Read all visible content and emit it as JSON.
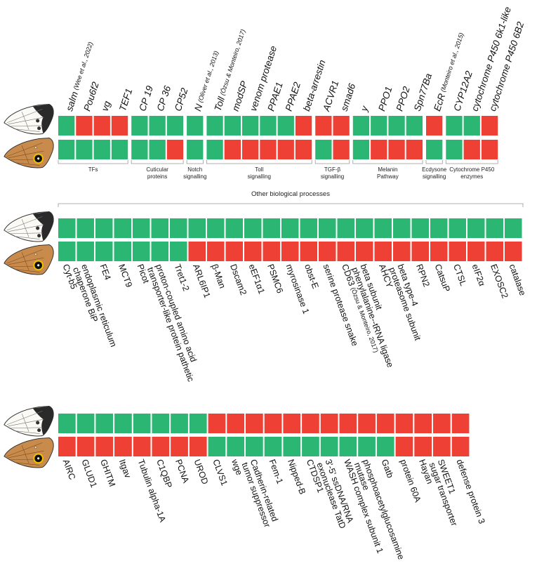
{
  "panels": [
    {
      "groups": [
        {
          "label": [
            "TFs"
          ],
          "genes": [
            {
              "label": [
                "salm"
              ],
              "ref": "(Wee et al., 2022)",
              "colors": [
                "#2bb673",
                "#2bb673"
              ]
            },
            {
              "label": [
                "Pou6f2"
              ],
              "colors": [
                "#ee4035",
                "#2bb673"
              ]
            },
            {
              "label": [
                "vg"
              ],
              "colors": [
                "#ee4035",
                "#2bb673"
              ]
            },
            {
              "label": [
                "TEF1"
              ],
              "colors": [
                "#ee4035",
                "#2bb673"
              ]
            }
          ]
        },
        {
          "label": [
            "Cuticular",
            "proteins"
          ],
          "genes": [
            {
              "label": [
                "CP 19"
              ],
              "colors": [
                "#2bb673",
                "#2bb673"
              ]
            },
            {
              "label": [
                "CP 36"
              ],
              "colors": [
                "#2bb673",
                "#2bb673"
              ]
            },
            {
              "label": [
                "CP52"
              ],
              "colors": [
                "#2bb673",
                "#ee4035"
              ]
            }
          ]
        },
        {
          "label": [
            "Notch",
            "signalling"
          ],
          "genes": [
            {
              "label": [
                "N"
              ],
              "ref": "(Oliver et al., 2013)",
              "colors": [
                "#2bb673",
                "#2bb673"
              ]
            }
          ]
        },
        {
          "label": [
            "Toll",
            "signalling"
          ],
          "genes": [
            {
              "label": [
                "Toll"
              ],
              "ref": "(Özsu & Monteiro, 2017)",
              "colors": [
                "#2bb673",
                "#2bb673"
              ]
            },
            {
              "label": [
                "modSP"
              ],
              "colors": [
                "#2bb673",
                "#ee4035"
              ]
            },
            {
              "label": [
                "venom protease"
              ],
              "colors": [
                "#2bb673",
                "#ee4035"
              ]
            },
            {
              "label": [
                "PPAE1"
              ],
              "colors": [
                "#2bb673",
                "#ee4035"
              ]
            },
            {
              "label": [
                "PPAE2"
              ],
              "colors": [
                "#2bb673",
                "#ee4035"
              ]
            },
            {
              "label": [
                "beta-arrestin"
              ],
              "colors": [
                "#ee4035",
                "#ee4035"
              ]
            }
          ]
        },
        {
          "label": [
            "TGF-β",
            "signalling"
          ],
          "genes": [
            {
              "label": [
                "ACVR1"
              ],
              "colors": [
                "#ee4035",
                "#2bb673"
              ]
            },
            {
              "label": [
                "smad6"
              ],
              "colors": [
                "#ee4035",
                "#ee4035"
              ]
            }
          ]
        },
        {
          "label": [
            "Melanin",
            "Pathway"
          ],
          "genes": [
            {
              "label": [
                "y"
              ],
              "colors": [
                "#2bb673",
                "#2bb673"
              ]
            },
            {
              "label": [
                "PPO1"
              ],
              "colors": [
                "#2bb673",
                "#ee4035"
              ]
            },
            {
              "label": [
                "PPO2"
              ],
              "colors": [
                "#2bb673",
                "#ee4035"
              ]
            },
            {
              "label": [
                "Spn77Ba"
              ],
              "colors": [
                "#2bb673",
                "#ee4035"
              ]
            }
          ]
        },
        {
          "label": [
            "Ecdysone",
            "signalling"
          ],
          "genes": [
            {
              "label": [
                "EcR"
              ],
              "ref": "(Monteiro et al., 2015)",
              "colors": [
                "#ee4035",
                "#2bb673"
              ]
            }
          ]
        },
        {
          "label": [
            "Cytochrome P450",
            "enzymes"
          ],
          "genes": [
            {
              "label": [
                "CYP12A2"
              ],
              "colors": [
                "#2bb673",
                "#2bb673"
              ]
            },
            {
              "label": [
                "cytochrome P450 6k1-like"
              ],
              "colors": [
                "#2bb673",
                "#ee4035"
              ]
            },
            {
              "label": [
                "cytochrome P450 6B2"
              ],
              "colors": [
                "#ee4035",
                "#ee4035"
              ]
            }
          ]
        }
      ]
    },
    {
      "title": "Other biological processes",
      "genes": [
        {
          "label": [
            "Cyt-b5"
          ],
          "colors": [
            "#2bb673",
            "#2bb673"
          ]
        },
        {
          "label": [
            "endoplasmic reticulum",
            "chaperone BiP"
          ],
          "colors": [
            "#2bb673",
            "#2bb673"
          ]
        },
        {
          "label": [
            "FE4"
          ],
          "colors": [
            "#2bb673",
            "#2bb673"
          ]
        },
        {
          "label": [
            "MCT9"
          ],
          "colors": [
            "#2bb673",
            "#2bb673"
          ]
        },
        {
          "label": [
            "Picot"
          ],
          "colors": [
            "#2bb673",
            "#2bb673"
          ]
        },
        {
          "label": [
            "proton-coupled amino acid",
            "transporter-like protein pathetic"
          ],
          "colors": [
            "#2bb673",
            "#2bb673"
          ]
        },
        {
          "label": [
            "Tret1-2"
          ],
          "colors": [
            "#2bb673",
            "#2bb673"
          ]
        },
        {
          "label": [
            "ARL6IP1"
          ],
          "colors": [
            "#2bb673",
            "#ee4035"
          ]
        },
        {
          "label": [
            "β-Man"
          ],
          "colors": [
            "#2bb673",
            "#ee4035"
          ]
        },
        {
          "label": [
            "Dscam2"
          ],
          "colors": [
            "#2bb673",
            "#ee4035"
          ]
        },
        {
          "label": [
            "eEF1α1"
          ],
          "colors": [
            "#2bb673",
            "#ee4035"
          ]
        },
        {
          "label": [
            "PSMC6"
          ],
          "colors": [
            "#2bb673",
            "#ee4035"
          ]
        },
        {
          "label": [
            "myrosinase 1"
          ],
          "colors": [
            "#2bb673",
            "#ee4035"
          ]
        },
        {
          "label": [
            "obst-E"
          ],
          "colors": [
            "#2bb673",
            "#ee4035"
          ]
        },
        {
          "label": [
            "serine protease snake"
          ],
          "colors": [
            "#2bb673",
            "#ee4035"
          ]
        },
        {
          "label": [
            "CD63"
          ],
          "ref": "(Özsu & Monteiro, 2017)",
          "colors": [
            "#2bb673",
            "#ee4035"
          ]
        },
        {
          "label": [
            "beta subunit",
            "phenylalanine--tRNA ligase"
          ],
          "colors": [
            "#2bb673",
            "#ee4035"
          ]
        },
        {
          "label": [
            "AHCY"
          ],
          "colors": [
            "#2bb673",
            "#ee4035"
          ]
        },
        {
          "label": [
            "beta type-4",
            "proteasome subunit"
          ],
          "colors": [
            "#2bb673",
            "#ee4035"
          ]
        },
        {
          "label": [
            "RPN2"
          ],
          "colors": [
            "#2bb673",
            "#ee4035"
          ]
        },
        {
          "label": [
            "CatsuP"
          ],
          "colors": [
            "#2bb673",
            "#ee4035"
          ]
        },
        {
          "label": [
            "CTSL"
          ],
          "colors": [
            "#2bb673",
            "#ee4035"
          ]
        },
        {
          "label": [
            "eIF2α"
          ],
          "colors": [
            "#2bb673",
            "#ee4035"
          ]
        },
        {
          "label": [
            "EXOSC2"
          ],
          "colors": [
            "#2bb673",
            "#ee4035"
          ]
        },
        {
          "label": [
            "catalase"
          ],
          "colors": [
            "#2bb673",
            "#ee4035"
          ]
        }
      ]
    },
    {
      "genes": [
        {
          "label": [
            "AIRC"
          ],
          "colors": [
            "#2bb673",
            "#ee4035"
          ]
        },
        {
          "label": [
            "GLUD1"
          ],
          "colors": [
            "#2bb673",
            "#ee4035"
          ]
        },
        {
          "label": [
            "GHITM"
          ],
          "colors": [
            "#2bb673",
            "#ee4035"
          ]
        },
        {
          "label": [
            "Itgav"
          ],
          "colors": [
            "#2bb673",
            "#ee4035"
          ]
        },
        {
          "label": [
            "Tubulin alpha-1A"
          ],
          "colors": [
            "#2bb673",
            "#ee4035"
          ]
        },
        {
          "label": [
            "C1QBP"
          ],
          "colors": [
            "#2bb673",
            "#ee4035"
          ]
        },
        {
          "label": [
            "PCNA"
          ],
          "colors": [
            "#2bb673",
            "#ee4035"
          ]
        },
        {
          "label": [
            "UROD"
          ],
          "colors": [
            "#2bb673",
            "#ee4035"
          ]
        },
        {
          "label": [
            "CLVS1"
          ],
          "colors": [
            "#ee4035",
            "#2bb673"
          ]
        },
        {
          "label": [
            "wge"
          ],
          "colors": [
            "#ee4035",
            "#2bb673"
          ]
        },
        {
          "label": [
            "Cadherin-related",
            "tumor suppressor"
          ],
          "colors": [
            "#ee4035",
            "#2bb673"
          ]
        },
        {
          "label": [
            "Fem-1"
          ],
          "colors": [
            "#ee4035",
            "#2bb673"
          ]
        },
        {
          "label": [
            "Nipped-B"
          ],
          "colors": [
            "#ee4035",
            "#2bb673"
          ]
        },
        {
          "label": [
            "CTDSP1"
          ],
          "colors": [
            "#ee4035",
            "#2bb673"
          ]
        },
        {
          "label": [
            "3'-5' ssDNA/RNA",
            "exonuclease TatD"
          ],
          "colors": [
            "#ee4035",
            "#2bb673"
          ]
        },
        {
          "label": [
            "WASH complex subunit 1"
          ],
          "colors": [
            "#ee4035",
            "#2bb673"
          ]
        },
        {
          "label": [
            "phosphoacetylglucosamine",
            "mutase"
          ],
          "colors": [
            "#ee4035",
            "#2bb673"
          ]
        },
        {
          "label": [
            "Gatb"
          ],
          "colors": [
            "#ee4035",
            "#2bb673"
          ]
        },
        {
          "label": [
            "protein 60A"
          ],
          "colors": [
            "#ee4035",
            "#ee4035"
          ]
        },
        {
          "label": [
            "Hayan"
          ],
          "colors": [
            "#ee4035",
            "#ee4035"
          ]
        },
        {
          "label": [
            "SWEET1",
            "sugar transporter"
          ],
          "colors": [
            "#ee4035",
            "#ee4035"
          ]
        },
        {
          "label": [
            "defense protein 3"
          ],
          "colors": [
            "#ee4035",
            "#ee4035"
          ]
        }
      ]
    }
  ]
}
